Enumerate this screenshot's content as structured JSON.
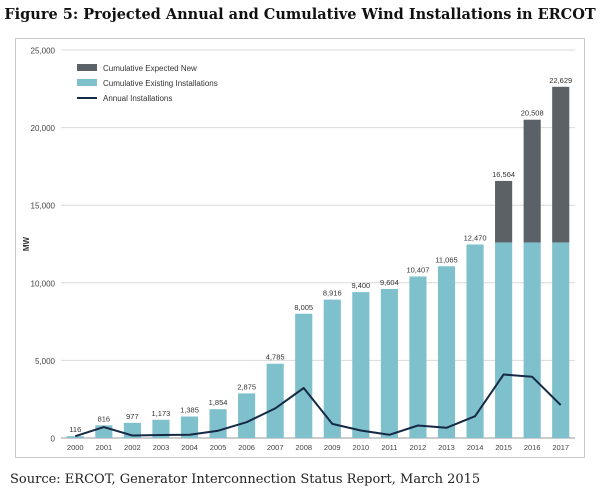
{
  "figure_title": "Figure 5: Projected Annual and Cumulative Wind Installations in ERCOT",
  "source": "Source: ERCOT, Generator Interconnection Status Report, March 2015",
  "colors": {
    "existing": "#7ec1cc",
    "expected_new": "#5a6167",
    "annual_line": "#162a45",
    "grid": "#d9d9d9",
    "axis_text": "#444444"
  },
  "chart_data": {
    "type": "bar",
    "title": "Figure 5: Projected Annual and Cumulative Wind Installations in ERCOT",
    "xlabel": "",
    "ylabel": "MW",
    "ylim": [
      0,
      25000
    ],
    "yticks": [
      0,
      5000,
      10000,
      15000,
      20000,
      25000
    ],
    "ytick_labels": [
      "0",
      "5,000",
      "10,000",
      "15,000",
      "20,000",
      "25,000"
    ],
    "grid": true,
    "legend_position": "top-left",
    "categories": [
      "2000",
      "2001",
      "2002",
      "2003",
      "2004",
      "2005",
      "2006",
      "2007",
      "2008",
      "2009",
      "2010",
      "2011",
      "2012",
      "2013",
      "2014",
      "2015",
      "2016",
      "2017"
    ],
    "series": [
      {
        "name": "Cumulative Existing Installations",
        "kind": "bar",
        "values": [
          116,
          816,
          977,
          1173,
          1385,
          1854,
          2875,
          4785,
          8005,
          8916,
          9400,
          9604,
          10407,
          11065,
          12470,
          12600,
          12600,
          12600
        ]
      },
      {
        "name": "Cumulative Expected New",
        "kind": "bar-stacked",
        "values": [
          0,
          0,
          0,
          0,
          0,
          0,
          0,
          0,
          0,
          0,
          0,
          0,
          0,
          0,
          0,
          3964,
          7908,
          10029
        ]
      },
      {
        "name": "Annual Installations",
        "kind": "line",
        "values": [
          116,
          700,
          161,
          196,
          212,
          469,
          1021,
          1910,
          3220,
          911,
          484,
          204,
          803,
          658,
          1405,
          4094,
          3944,
          2121
        ]
      }
    ],
    "totals": [
      116,
      816,
      977,
      1173,
      1385,
      1854,
      2875,
      4785,
      8005,
      8916,
      9400,
      9604,
      10407,
      11065,
      12470,
      16564,
      20508,
      22629
    ],
    "data_labels": [
      "116",
      "816",
      "977",
      "1,173",
      "1,385",
      "1,854",
      "2,875",
      "4,785",
      "8,005",
      "8,916",
      "9,400",
      "9,604",
      "10,407",
      "11,065",
      "12,470",
      "16,564",
      "20,508",
      "22,629"
    ],
    "legend": [
      "Cumulative Expected New",
      "Cumulative Existing Installations",
      "Annual Installations"
    ]
  }
}
